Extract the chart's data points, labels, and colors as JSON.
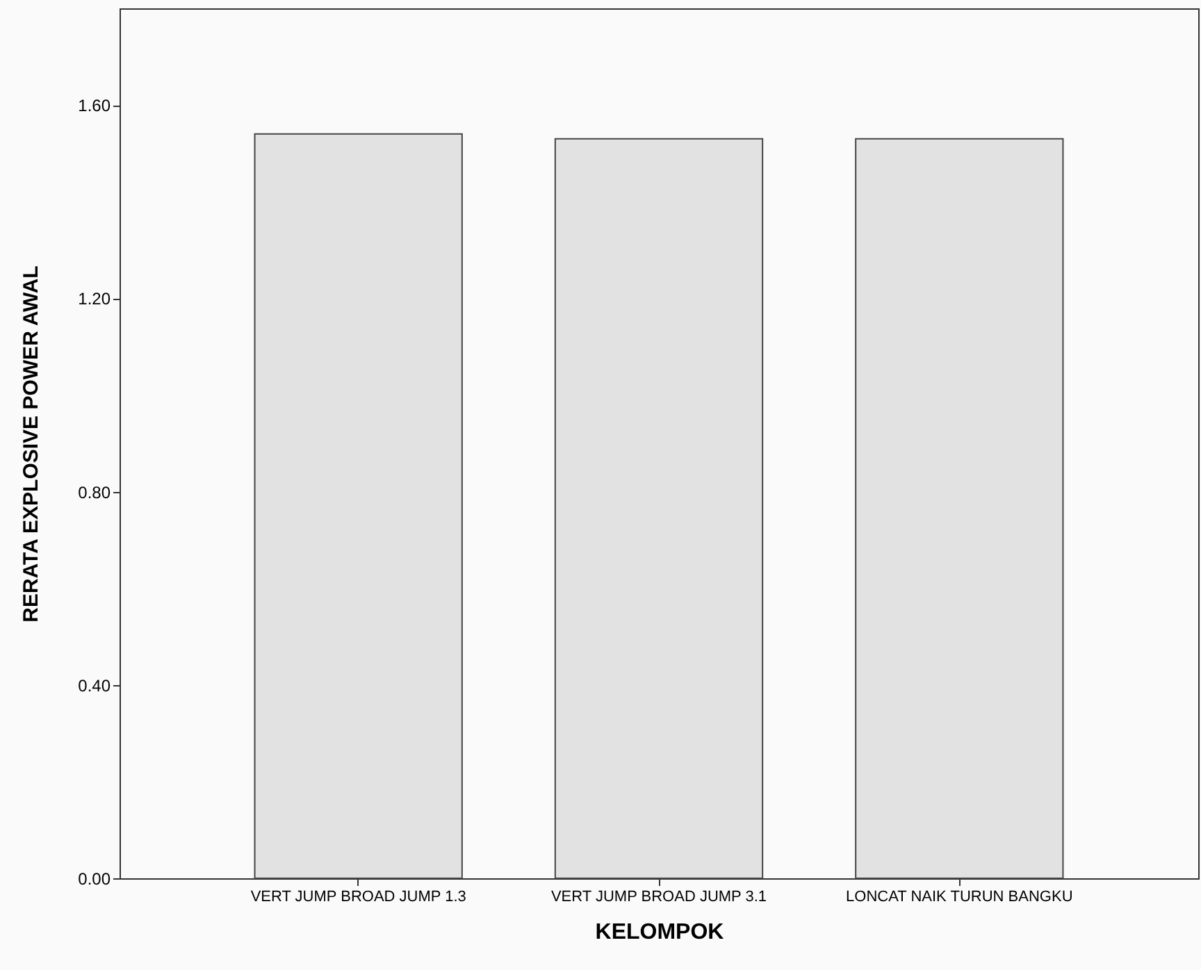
{
  "chart_data": {
    "type": "bar",
    "xlabel": "KELOMPOK",
    "ylabel": "RERATA EXPLOSIVE POWER AWAL",
    "categories": [
      "VERT JUMP BROAD JUMP 1.3",
      "VERT JUMP BROAD JUMP 3.1",
      "LONCAT NAIK TURUN BANGKU"
    ],
    "values": [
      1.54,
      1.53,
      1.53
    ],
    "color": "#e2e2e2",
    "ylim": [
      0,
      1.8
    ],
    "yticks": [
      {
        "value": 0,
        "label": "0.00"
      },
      {
        "value": 0.4,
        "label": "0.40"
      },
      {
        "value": 0.8,
        "label": "0.80"
      },
      {
        "value": 1.2,
        "label": "1.20"
      },
      {
        "value": 1.6,
        "label": "1.60"
      }
    ],
    "grid": false
  }
}
